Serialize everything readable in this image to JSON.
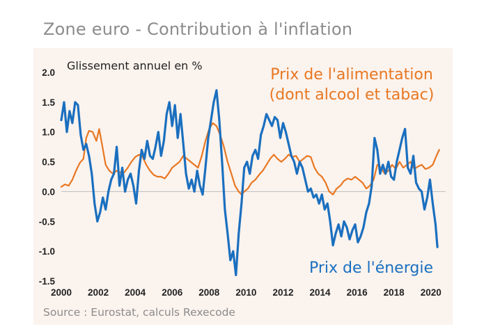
{
  "header": {
    "title": "Zone euro - Contribution à l'inflation"
  },
  "footer": {
    "source": "Source : Eurostat, calculs Rexecode"
  },
  "colors": {
    "food": "#e87722",
    "energy": "#1a6fbf",
    "zero_line": "#bdbdbd",
    "axis_text": "#222222",
    "panel_bg": "#fbf3ee"
  },
  "chart_data": {
    "type": "line",
    "title": "Zone euro - Contribution à l'inflation",
    "ylabel": "Glissement annuel en %",
    "xlabel": "",
    "ylim": [
      -1.5,
      2.0
    ],
    "xlim": [
      2000,
      2020.8
    ],
    "x_ticks": [
      2000,
      2002,
      2004,
      2006,
      2008,
      2010,
      2012,
      2014,
      2016,
      2018,
      2020
    ],
    "x_tick_labels": [
      "2000",
      "2002",
      "2004",
      "2006",
      "2008",
      "2010",
      "2012",
      "2014",
      "2016",
      "2018",
      "2020"
    ],
    "y_ticks": [
      2.0,
      1.5,
      1.0,
      0.5,
      0.0,
      -0.5,
      -1.0,
      -1.5
    ],
    "y_tick_labels": [
      "2.0",
      "1.5",
      "1.0",
      "0.5",
      "0.0",
      "-0.5",
      "-1.0",
      "-1.5"
    ],
    "series": [
      {
        "name": "Prix de l'alimentation (dont alcool et tabac)",
        "label_lines": [
          "Prix de l'alimentation",
          "(dont alcool et tabac)"
        ],
        "color": "#e87722",
        "points": [
          [
            2000.0,
            0.08
          ],
          [
            2000.2,
            0.12
          ],
          [
            2000.4,
            0.1
          ],
          [
            2000.6,
            0.2
          ],
          [
            2000.8,
            0.35
          ],
          [
            2001.0,
            0.48
          ],
          [
            2001.2,
            0.55
          ],
          [
            2001.35,
            0.9
          ],
          [
            2001.5,
            1.02
          ],
          [
            2001.7,
            1.0
          ],
          [
            2001.9,
            0.85
          ],
          [
            2002.05,
            1.05
          ],
          [
            2002.2,
            0.8
          ],
          [
            2002.4,
            0.45
          ],
          [
            2002.6,
            0.35
          ],
          [
            2002.8,
            0.3
          ],
          [
            2003.0,
            0.35
          ],
          [
            2003.2,
            0.32
          ],
          [
            2003.4,
            0.32
          ],
          [
            2003.6,
            0.4
          ],
          [
            2003.8,
            0.5
          ],
          [
            2004.0,
            0.58
          ],
          [
            2004.2,
            0.62
          ],
          [
            2004.4,
            0.58
          ],
          [
            2004.6,
            0.45
          ],
          [
            2004.8,
            0.35
          ],
          [
            2005.0,
            0.28
          ],
          [
            2005.2,
            0.25
          ],
          [
            2005.4,
            0.25
          ],
          [
            2005.6,
            0.22
          ],
          [
            2005.8,
            0.3
          ],
          [
            2006.0,
            0.4
          ],
          [
            2006.2,
            0.45
          ],
          [
            2006.4,
            0.5
          ],
          [
            2006.6,
            0.6
          ],
          [
            2006.8,
            0.55
          ],
          [
            2007.0,
            0.5
          ],
          [
            2007.2,
            0.45
          ],
          [
            2007.4,
            0.4
          ],
          [
            2007.6,
            0.6
          ],
          [
            2007.8,
            0.85
          ],
          [
            2008.0,
            1.05
          ],
          [
            2008.2,
            1.15
          ],
          [
            2008.4,
            1.1
          ],
          [
            2008.6,
            0.95
          ],
          [
            2008.8,
            0.75
          ],
          [
            2009.0,
            0.5
          ],
          [
            2009.2,
            0.3
          ],
          [
            2009.4,
            0.1
          ],
          [
            2009.6,
            0.0
          ],
          [
            2009.75,
            -0.05
          ],
          [
            2009.9,
            0.0
          ],
          [
            2010.1,
            0.05
          ],
          [
            2010.3,
            0.15
          ],
          [
            2010.5,
            0.2
          ],
          [
            2010.7,
            0.28
          ],
          [
            2010.9,
            0.35
          ],
          [
            2011.1,
            0.45
          ],
          [
            2011.3,
            0.55
          ],
          [
            2011.5,
            0.62
          ],
          [
            2011.7,
            0.55
          ],
          [
            2011.9,
            0.5
          ],
          [
            2012.1,
            0.55
          ],
          [
            2012.3,
            0.62
          ],
          [
            2012.5,
            0.58
          ],
          [
            2012.7,
            0.6
          ],
          [
            2012.9,
            0.5
          ],
          [
            2013.1,
            0.55
          ],
          [
            2013.3,
            0.6
          ],
          [
            2013.5,
            0.58
          ],
          [
            2013.7,
            0.4
          ],
          [
            2013.9,
            0.3
          ],
          [
            2014.1,
            0.25
          ],
          [
            2014.3,
            0.15
          ],
          [
            2014.5,
            0.0
          ],
          [
            2014.7,
            -0.05
          ],
          [
            2014.9,
            0.05
          ],
          [
            2015.1,
            0.1
          ],
          [
            2015.3,
            0.18
          ],
          [
            2015.5,
            0.22
          ],
          [
            2015.7,
            0.2
          ],
          [
            2015.9,
            0.25
          ],
          [
            2016.1,
            0.2
          ],
          [
            2016.3,
            0.15
          ],
          [
            2016.5,
            0.05
          ],
          [
            2016.7,
            0.1
          ],
          [
            2016.9,
            0.2
          ],
          [
            2017.1,
            0.45
          ],
          [
            2017.3,
            0.4
          ],
          [
            2017.5,
            0.3
          ],
          [
            2017.7,
            0.35
          ],
          [
            2017.9,
            0.45
          ],
          [
            2018.1,
            0.38
          ],
          [
            2018.3,
            0.5
          ],
          [
            2018.5,
            0.4
          ],
          [
            2018.7,
            0.45
          ],
          [
            2018.9,
            0.5
          ],
          [
            2019.1,
            0.38
          ],
          [
            2019.3,
            0.42
          ],
          [
            2019.5,
            0.45
          ],
          [
            2019.7,
            0.38
          ],
          [
            2019.9,
            0.4
          ],
          [
            2020.1,
            0.45
          ],
          [
            2020.3,
            0.6
          ],
          [
            2020.45,
            0.7
          ]
        ]
      },
      {
        "name": "Prix de l'énergie",
        "label_lines": [
          "Prix de l'énergie"
        ],
        "color": "#1a6fbf",
        "points": [
          [
            2000.0,
            1.2
          ],
          [
            2000.15,
            1.5
          ],
          [
            2000.3,
            1.0
          ],
          [
            2000.45,
            1.35
          ],
          [
            2000.6,
            1.15
          ],
          [
            2000.75,
            1.5
          ],
          [
            2000.9,
            1.45
          ],
          [
            2001.05,
            0.95
          ],
          [
            2001.2,
            0.7
          ],
          [
            2001.35,
            0.8
          ],
          [
            2001.5,
            0.6
          ],
          [
            2001.65,
            0.3
          ],
          [
            2001.8,
            -0.2
          ],
          [
            2001.95,
            -0.5
          ],
          [
            2002.1,
            -0.35
          ],
          [
            2002.25,
            -0.1
          ],
          [
            2002.4,
            -0.3
          ],
          [
            2002.55,
            0.0
          ],
          [
            2002.7,
            0.2
          ],
          [
            2002.85,
            0.3
          ],
          [
            2003.0,
            0.75
          ],
          [
            2003.15,
            0.1
          ],
          [
            2003.3,
            0.4
          ],
          [
            2003.45,
            0.0
          ],
          [
            2003.6,
            0.2
          ],
          [
            2003.75,
            0.3
          ],
          [
            2003.9,
            0.1
          ],
          [
            2004.05,
            -0.2
          ],
          [
            2004.2,
            0.35
          ],
          [
            2004.35,
            0.7
          ],
          [
            2004.5,
            0.55
          ],
          [
            2004.65,
            0.85
          ],
          [
            2004.8,
            0.6
          ],
          [
            2004.95,
            0.55
          ],
          [
            2005.1,
            0.75
          ],
          [
            2005.25,
            1.0
          ],
          [
            2005.4,
            0.6
          ],
          [
            2005.55,
            0.85
          ],
          [
            2005.7,
            1.3
          ],
          [
            2005.85,
            1.5
          ],
          [
            2006.0,
            1.1
          ],
          [
            2006.15,
            1.45
          ],
          [
            2006.3,
            0.9
          ],
          [
            2006.45,
            1.3
          ],
          [
            2006.6,
            0.8
          ],
          [
            2006.75,
            0.3
          ],
          [
            2006.9,
            0.05
          ],
          [
            2007.05,
            0.2
          ],
          [
            2007.2,
            0.0
          ],
          [
            2007.35,
            0.35
          ],
          [
            2007.5,
            0.1
          ],
          [
            2007.65,
            -0.05
          ],
          [
            2007.8,
            0.4
          ],
          [
            2007.95,
            0.9
          ],
          [
            2008.1,
            1.2
          ],
          [
            2008.25,
            1.5
          ],
          [
            2008.4,
            1.7
          ],
          [
            2008.55,
            1.2
          ],
          [
            2008.7,
            0.5
          ],
          [
            2008.85,
            -0.3
          ],
          [
            2009.0,
            -0.7
          ],
          [
            2009.15,
            -1.15
          ],
          [
            2009.3,
            -1.0
          ],
          [
            2009.45,
            -1.4
          ],
          [
            2009.6,
            -0.7
          ],
          [
            2009.75,
            -0.2
          ],
          [
            2009.9,
            0.4
          ],
          [
            2010.05,
            0.5
          ],
          [
            2010.2,
            0.3
          ],
          [
            2010.35,
            0.6
          ],
          [
            2010.5,
            0.7
          ],
          [
            2010.65,
            0.55
          ],
          [
            2010.8,
            0.95
          ],
          [
            2010.95,
            1.1
          ],
          [
            2011.1,
            1.3
          ],
          [
            2011.25,
            1.2
          ],
          [
            2011.4,
            1.1
          ],
          [
            2011.55,
            1.25
          ],
          [
            2011.7,
            1.2
          ],
          [
            2011.85,
            0.9
          ],
          [
            2012.0,
            1.15
          ],
          [
            2012.15,
            1.0
          ],
          [
            2012.3,
            0.8
          ],
          [
            2012.45,
            0.6
          ],
          [
            2012.6,
            0.5
          ],
          [
            2012.75,
            0.3
          ],
          [
            2012.9,
            0.5
          ],
          [
            2013.05,
            0.4
          ],
          [
            2013.2,
            0.2
          ],
          [
            2013.35,
            0.0
          ],
          [
            2013.5,
            0.05
          ],
          [
            2013.65,
            -0.1
          ],
          [
            2013.8,
            -0.05
          ],
          [
            2013.95,
            -0.2
          ],
          [
            2014.1,
            -0.05
          ],
          [
            2014.25,
            -0.3
          ],
          [
            2014.4,
            -0.2
          ],
          [
            2014.55,
            -0.5
          ],
          [
            2014.7,
            -0.9
          ],
          [
            2014.85,
            -0.7
          ],
          [
            2015.0,
            -0.55
          ],
          [
            2015.15,
            -0.75
          ],
          [
            2015.3,
            -0.5
          ],
          [
            2015.45,
            -0.6
          ],
          [
            2015.6,
            -0.8
          ],
          [
            2015.75,
            -0.65
          ],
          [
            2015.9,
            -0.55
          ],
          [
            2016.05,
            -0.85
          ],
          [
            2016.2,
            -0.75
          ],
          [
            2016.35,
            -0.6
          ],
          [
            2016.5,
            -0.35
          ],
          [
            2016.65,
            -0.2
          ],
          [
            2016.8,
            0.1
          ],
          [
            2016.95,
            0.9
          ],
          [
            2017.1,
            0.7
          ],
          [
            2017.25,
            0.3
          ],
          [
            2017.4,
            0.45
          ],
          [
            2017.55,
            0.3
          ],
          [
            2017.7,
            0.5
          ],
          [
            2017.85,
            0.25
          ],
          [
            2018.0,
            0.2
          ],
          [
            2018.15,
            0.5
          ],
          [
            2018.3,
            0.7
          ],
          [
            2018.45,
            0.9
          ],
          [
            2018.6,
            1.05
          ],
          [
            2018.75,
            0.4
          ],
          [
            2018.9,
            0.3
          ],
          [
            2019.05,
            0.6
          ],
          [
            2019.2,
            0.15
          ],
          [
            2019.35,
            0.05
          ],
          [
            2019.5,
            0.0
          ],
          [
            2019.65,
            -0.3
          ],
          [
            2019.8,
            -0.1
          ],
          [
            2019.95,
            0.2
          ],
          [
            2020.1,
            -0.2
          ],
          [
            2020.25,
            -0.55
          ],
          [
            2020.35,
            -0.93
          ]
        ]
      }
    ],
    "annotations": []
  }
}
